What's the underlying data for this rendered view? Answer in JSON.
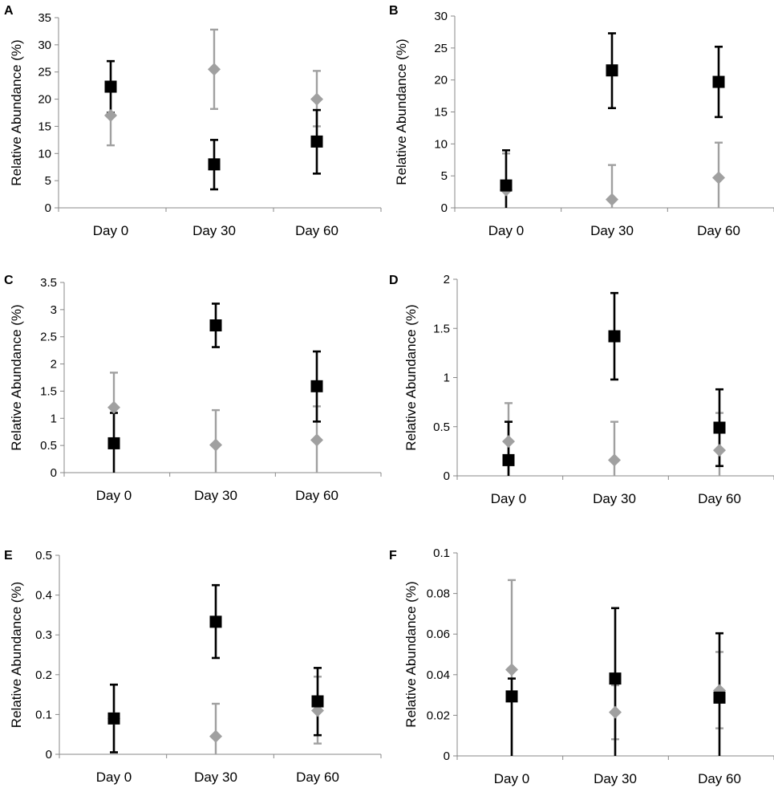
{
  "chart_data": [
    {
      "type": "scatter",
      "panel": "A",
      "ylabel": "Relative Abundance (%)",
      "categories": [
        "Day 0",
        "Day 30",
        "Day 60"
      ],
      "ylim": [
        0,
        35
      ],
      "yticks": [
        "0",
        "5",
        "10",
        "15",
        "20",
        "25",
        "30",
        "35"
      ],
      "series": [
        {
          "name": "gray",
          "color": "#A0A0A0",
          "marker": "diamond",
          "values": [
            17,
            25.5,
            20
          ],
          "err_low": [
            11.5,
            18.2,
            15
          ],
          "err_high": [
            22.3,
            32.8,
            25.2
          ]
        },
        {
          "name": "black",
          "color": "#000000",
          "marker": "square",
          "values": [
            22.3,
            8,
            12.2
          ],
          "err_low": [
            17.5,
            3.4,
            6.3
          ],
          "err_high": [
            27,
            12.5,
            18
          ]
        }
      ]
    },
    {
      "type": "scatter",
      "panel": "B",
      "ylabel": "Relative Abundance (%)",
      "categories": [
        "Day 0",
        "Day 30",
        "Day 60"
      ],
      "ylim": [
        0,
        30
      ],
      "yticks": [
        "0",
        "5",
        "10",
        "15",
        "20",
        "25",
        "30"
      ],
      "series": [
        {
          "name": "gray",
          "color": "#A0A0A0",
          "marker": "diamond",
          "values": [
            2.8,
            1.3,
            4.7
          ],
          "err_low": [
            0,
            0,
            0
          ],
          "err_high": [
            8.5,
            6.7,
            10.2
          ]
        },
        {
          "name": "black",
          "color": "#000000",
          "marker": "square",
          "values": [
            3.5,
            21.5,
            19.7
          ],
          "err_low": [
            0,
            15.6,
            14.2
          ],
          "err_high": [
            9,
            27.3,
            25.2
          ]
        }
      ]
    },
    {
      "type": "scatter",
      "panel": "C",
      "ylabel": "Relative Abundance (%)",
      "categories": [
        "Day 0",
        "Day 30",
        "Day 60"
      ],
      "ylim": [
        0,
        3.5
      ],
      "yticks": [
        "0",
        "0.5",
        "1",
        "1.5",
        "2",
        "2.5",
        "3",
        "3.5"
      ],
      "series": [
        {
          "name": "gray",
          "color": "#A0A0A0",
          "marker": "diamond",
          "values": [
            1.2,
            0.51,
            0.6
          ],
          "err_low": [
            0.55,
            0,
            0
          ],
          "err_high": [
            1.84,
            1.15,
            1.22
          ]
        },
        {
          "name": "black",
          "color": "#000000",
          "marker": "square",
          "values": [
            0.54,
            2.71,
            1.59
          ],
          "err_low": [
            0,
            2.31,
            0.94
          ],
          "err_high": [
            1.1,
            3.11,
            2.23
          ]
        }
      ]
    },
    {
      "type": "scatter",
      "panel": "D",
      "ylabel": "Relative Abundance (%)",
      "categories": [
        "Day 0",
        "Day 30",
        "Day 60"
      ],
      "ylim": [
        0,
        2
      ],
      "yticks": [
        "0",
        "0.5",
        "1",
        "1.5",
        "2"
      ],
      "series": [
        {
          "name": "gray",
          "color": "#A0A0A0",
          "marker": "diamond",
          "values": [
            0.35,
            0.16,
            0.26
          ],
          "err_low": [
            0,
            0,
            0
          ],
          "err_high": [
            0.74,
            0.55,
            0.64
          ]
        },
        {
          "name": "black",
          "color": "#000000",
          "marker": "square",
          "values": [
            0.16,
            1.42,
            0.49
          ],
          "err_low": [
            0,
            0.98,
            0.1
          ],
          "err_high": [
            0.55,
            1.86,
            0.88
          ]
        }
      ]
    },
    {
      "type": "scatter",
      "panel": "E",
      "ylabel": "Relative Abundance (%)",
      "categories": [
        "Day 0",
        "Day 30",
        "Day 60"
      ],
      "ylim": [
        0,
        0.5
      ],
      "yticks": [
        "0",
        "0.1",
        "0.2",
        "0.3",
        "0.4",
        "0.5"
      ],
      "series": [
        {
          "name": "gray",
          "color": "#A0A0A0",
          "marker": "diamond",
          "values": [
            0.09,
            0.045,
            0.11
          ],
          "err_low": [
            0.005,
            0,
            0.027
          ],
          "err_high": [
            0.175,
            0.127,
            0.195
          ]
        },
        {
          "name": "black",
          "color": "#000000",
          "marker": "square",
          "values": [
            0.09,
            0.333,
            0.133
          ],
          "err_low": [
            0.005,
            0.242,
            0.048
          ],
          "err_high": [
            0.175,
            0.425,
            0.217
          ]
        }
      ]
    },
    {
      "type": "scatter",
      "panel": "F",
      "ylabel": "Relative Abundance (%)",
      "categories": [
        "Day 0",
        "Day 30",
        "Day 60"
      ],
      "ylim": [
        0,
        0.1
      ],
      "yticks": [
        "0",
        "0.02",
        "0.04",
        "0.06",
        "0.08",
        "0.1"
      ],
      "series": [
        {
          "name": "gray",
          "color": "#A0A0A0",
          "marker": "diamond",
          "values": [
            0.0425,
            0.0215,
            0.0322
          ],
          "err_low": [
            0,
            0.0082,
            0.0136
          ],
          "err_high": [
            0.0866,
            0.0348,
            0.0512
          ]
        },
        {
          "name": "black",
          "color": "#000000",
          "marker": "square",
          "values": [
            0.0293,
            0.0381,
            0.0287
          ],
          "err_low": [
            0,
            0,
            0
          ],
          "err_high": [
            0.0381,
            0.0728,
            0.0604
          ]
        }
      ]
    }
  ]
}
